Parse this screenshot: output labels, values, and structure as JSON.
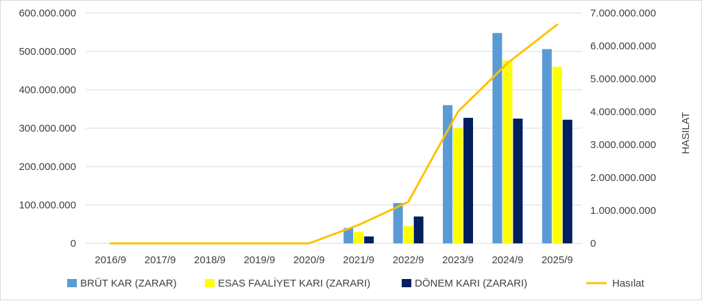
{
  "chart_data": {
    "type": "bar",
    "categories": [
      "2016/9",
      "2017/9",
      "2018/9",
      "2019/9",
      "2020/9",
      "2021/9",
      "2022/9",
      "2023/9",
      "2024/9",
      "2025/9"
    ],
    "series": [
      {
        "name": "BRÜT KAR (ZARAR)",
        "type": "bar",
        "axis": "left",
        "color": "#5b9bd5",
        "values": [
          0,
          0,
          0,
          0,
          0,
          40000000,
          105000000,
          360000000,
          548000000,
          506000000
        ]
      },
      {
        "name": "ESAS FAALİYET KARI (ZARARI)",
        "type": "bar",
        "axis": "left",
        "color": "#ffff00",
        "values": [
          0,
          0,
          0,
          0,
          0,
          30000000,
          45000000,
          300000000,
          476000000,
          460000000
        ]
      },
      {
        "name": "DÖNEM KARI (ZARARI)",
        "type": "bar",
        "axis": "left",
        "color": "#002060",
        "values": [
          0,
          0,
          0,
          0,
          0,
          18000000,
          70000000,
          327000000,
          325000000,
          322000000
        ]
      },
      {
        "name": "Hasılat",
        "type": "line",
        "axis": "right",
        "color": "#ffc000",
        "values": [
          0,
          0,
          0,
          0,
          0,
          560000000,
          1260000000,
          4000000000,
          5480000000,
          6650000000
        ]
      }
    ],
    "y_left": {
      "ylim": [
        0,
        600000000
      ],
      "ticks": [
        "0",
        "100.000.000",
        "200.000.000",
        "300.000.000",
        "400.000.000",
        "500.000.000",
        "600.000.000"
      ]
    },
    "y_right": {
      "label": "HASILAT",
      "ylim": [
        0,
        7000000000
      ],
      "ticks": [
        "0",
        "1.000.000.000",
        "2.000.000.000",
        "3.000.000.000",
        "4.000.000.000",
        "5.000.000.000",
        "6.000.000.000",
        "7.000.000.000"
      ]
    },
    "grid": true,
    "legend": "bottom"
  }
}
